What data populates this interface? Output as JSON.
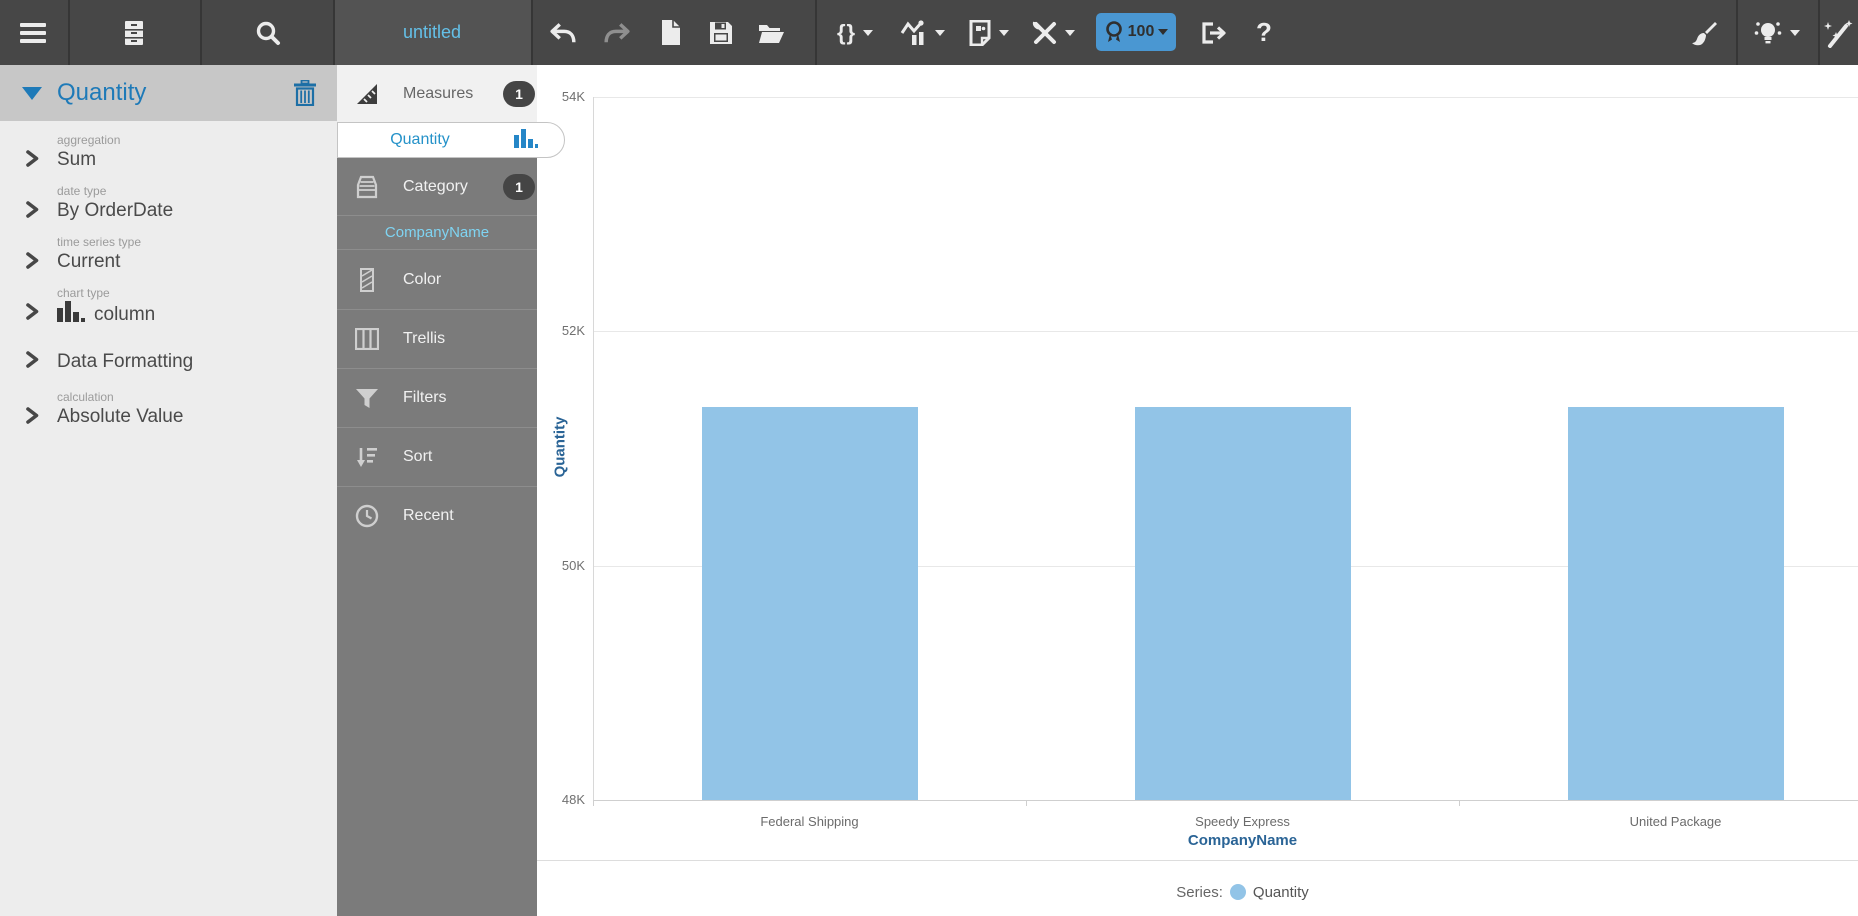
{
  "toolbar": {
    "title": "untitled",
    "code_button_label": "{}",
    "score_badge": "100",
    "help_label": "?"
  },
  "left_panel": {
    "title": "Quantity",
    "items": [
      {
        "label": "aggregation",
        "value": "Sum"
      },
      {
        "label": "date type",
        "value": "By OrderDate"
      },
      {
        "label": "time series type",
        "value": "Current"
      },
      {
        "label": "chart type",
        "value": "column"
      },
      {
        "label": "",
        "value": "Data Formatting"
      },
      {
        "label": "calculation",
        "value": "Absolute Value"
      }
    ]
  },
  "fields_panel": {
    "measures_label": "Measures",
    "measures_count": "1",
    "measure_field": "Quantity",
    "category_label": "Category",
    "category_count": "1",
    "category_field": "CompanyName",
    "sections": [
      {
        "label": "Color"
      },
      {
        "label": "Trellis"
      },
      {
        "label": "Filters"
      },
      {
        "label": "Sort"
      },
      {
        "label": "Recent"
      }
    ]
  },
  "legend": {
    "prefix": "Series:",
    "label": "Quantity"
  },
  "chart_data": {
    "type": "bar",
    "categories": [
      "Federal Shipping",
      "Speedy Express",
      "United Package"
    ],
    "series": [
      {
        "name": "Quantity",
        "color": "#92c4e7",
        "values": [
          51350,
          51350,
          51350
        ]
      }
    ],
    "xlabel": "CompanyName",
    "ylabel": "Quantity",
    "ylim": [
      48000,
      54000
    ],
    "yticks": [
      48000,
      50000,
      52000,
      54000
    ],
    "ytick_labels": [
      "48K",
      "50K",
      "52K",
      "54K"
    ],
    "grid": true,
    "legend_position": "bottom"
  },
  "colors": {
    "accent_blue": "#2592c9",
    "bar_blue": "#92c4e7",
    "badge_blue": "#4a97d2",
    "axis_title_blue": "#2a6496",
    "toolbar_title_blue": "#64c0e8"
  }
}
